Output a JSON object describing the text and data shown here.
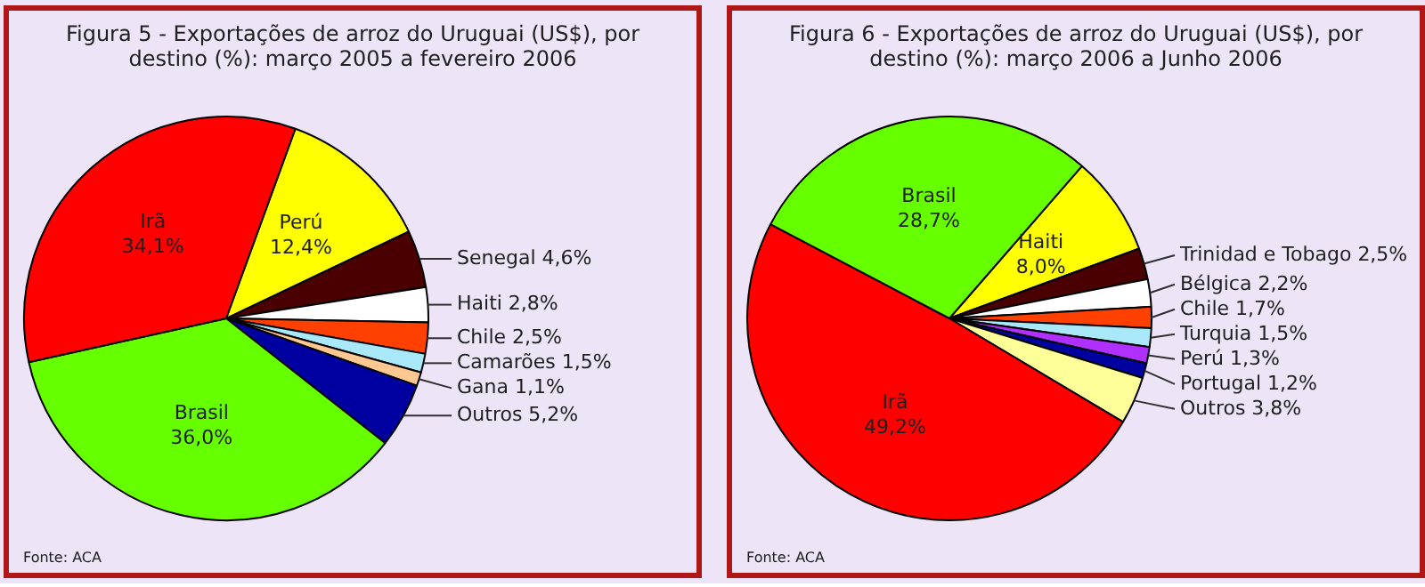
{
  "chart_data": [
    {
      "type": "pie",
      "title": "Figura 5 - Exportações de arroz do Uruguai (US$), por destino (%): março 2005 a fevereiro 2006",
      "categories": [
        "Perú",
        "Senegal",
        "Haiti",
        "Chile",
        "Camarões",
        "Gana",
        "Outros",
        "Brasil",
        "Irã"
      ],
      "values": [
        12.4,
        4.6,
        2.8,
        2.5,
        1.5,
        1.1,
        5.2,
        36.0,
        34.1
      ],
      "colors": [
        "#ffff00",
        "#4a0000",
        "#ffffff",
        "#ff4000",
        "#a8e8f8",
        "#ffc890",
        "#0000a0",
        "#66ff00",
        "#ff0000"
      ],
      "value_labels": [
        "12,4%",
        "4,6%",
        "2,8%",
        "2,5%",
        "1,5%",
        "1,1%",
        "5,2%",
        "36,0%",
        "34,1%"
      ],
      "annotations": [
        "Fonte: ACA"
      ]
    },
    {
      "type": "pie",
      "title": "Figura 6 - Exportações de arroz do Uruguai (US$), por destino (%): março 2006 a Junho 2006",
      "categories": [
        "Haiti",
        "Trinidad e Tobago",
        "Bélgica",
        "Chile",
        "Turquia",
        "Perú",
        "Portugal",
        "Outros",
        "Irã",
        "Brasil"
      ],
      "values": [
        8.0,
        2.5,
        2.2,
        1.7,
        1.5,
        1.3,
        1.2,
        3.8,
        49.2,
        28.7
      ],
      "colors": [
        "#ffff00",
        "#4a0000",
        "#ffffff",
        "#ff4000",
        "#a8e8f8",
        "#b030ff",
        "#0000a0",
        "#ffff99",
        "#ff0000",
        "#66ff00"
      ],
      "value_labels": [
        "8,0%",
        "2,5%",
        "2,2%",
        "1,7%",
        "1,5%",
        "1,3%",
        "1,2%",
        "3,8%",
        "49,2%",
        "28,7%"
      ],
      "annotations": [
        "Fonte: ACA"
      ]
    }
  ]
}
